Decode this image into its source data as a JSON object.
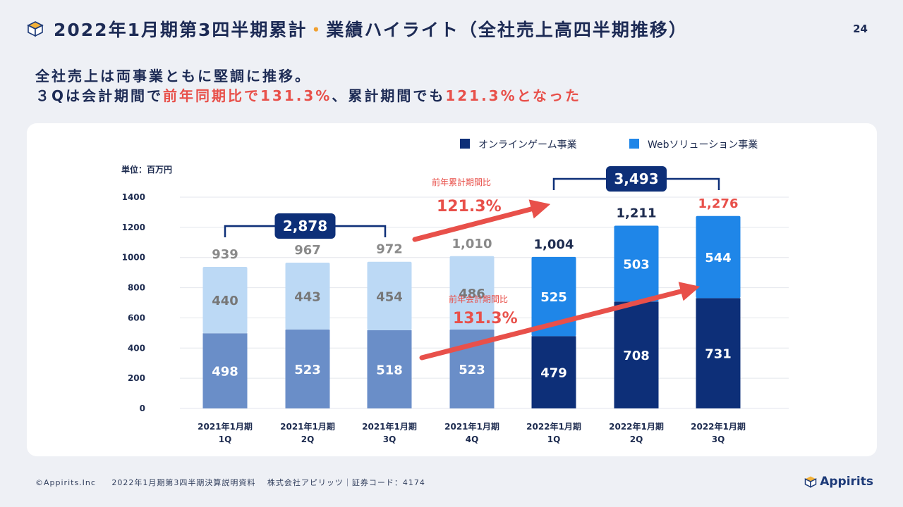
{
  "header": {
    "title_main": "2022年1月期第3四半期累計",
    "title_dot": "・",
    "title_sub": "業績ハイライト（全社売上高四半期推移）",
    "page_number": "24"
  },
  "lead": {
    "line1": "全社売上は両事業ともに堅調に推移。",
    "line2_a": "３Qは会計期間で",
    "line2_b": "前年同期比で131.3%",
    "line2_c": "、累計期間でも",
    "line2_d": "121.3%となった"
  },
  "footer": {
    "copyright": "©Appirits.Inc",
    "doc": "2022年1月期第3四半期決算説明資料　 株式会社アピリッツ｜証券コード：4174"
  },
  "logo": {
    "text": "Appirits"
  },
  "colors": {
    "online_past": "#6a8ec8",
    "web_past": "#bcd9f5",
    "online_cur": "#0d2f78",
    "web_cur": "#1f86e8",
    "accent_red": "#e8504a",
    "past_total_text": "#8a8a8a",
    "cur_total_text": "#1d2b4f",
    "bracket": "#0d2f78"
  },
  "chart_data": {
    "type": "bar",
    "stacked": true,
    "unit_label": "単位：百万円",
    "categories": [
      "2021年1月期\n1Q",
      "2021年1月期\n2Q",
      "2021年1月期\n3Q",
      "2021年1月期\n4Q",
      "2022年1月期\n1Q",
      "2022年1月期\n2Q",
      "2022年1月期\n3Q"
    ],
    "series": [
      {
        "name": "オンラインゲーム事業",
        "values": [
          498,
          523,
          518,
          523,
          479,
          708,
          731
        ]
      },
      {
        "name": "Webソリューション事業",
        "values": [
          440,
          443,
          454,
          486,
          525,
          503,
          544
        ]
      }
    ],
    "totals": [
      939,
      967,
      972,
      1010,
      1004,
      1211,
      1276
    ],
    "total_labels": [
      "939",
      "967",
      "972",
      "1,010",
      "1,004",
      "1,211",
      "1,276"
    ],
    "highlight_total_index": 6,
    "y_ticks": [
      0,
      200,
      400,
      600,
      800,
      1000,
      1200,
      1400
    ],
    "ylim": [
      0,
      1400
    ],
    "legend": [
      "オンラインゲーム事業",
      "Webソリューション事業"
    ],
    "legend_position": "top-right",
    "grid": true,
    "annotations": {
      "cumulative_prev": {
        "value": "2,878",
        "quarters": [
          0,
          2
        ]
      },
      "cumulative_curr": {
        "value": "3,493",
        "quarters": [
          4,
          6
        ]
      },
      "cumulative_ratio_label": "前年累計期間比",
      "cumulative_ratio_value": "121.3%",
      "quarter_ratio_label": "前年会計期間比",
      "quarter_ratio_value": "131.3%"
    }
  }
}
